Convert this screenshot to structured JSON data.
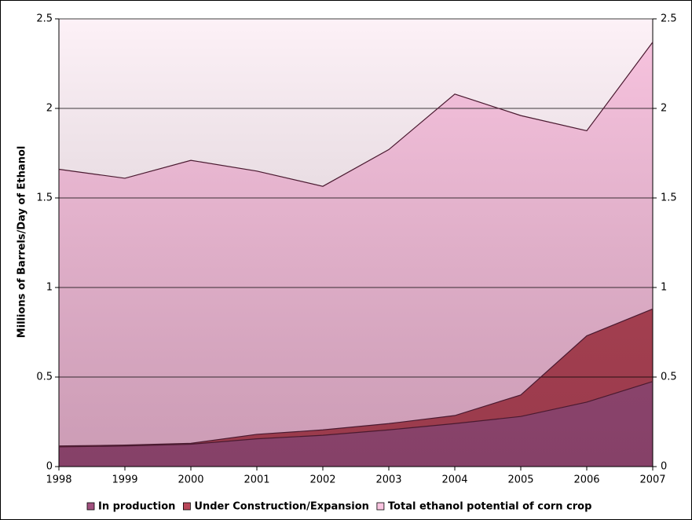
{
  "chart_data": {
    "type": "area",
    "y_axis_label": "Millions of Barrels/Day of Ethanol",
    "x": [
      1998,
      1999,
      2000,
      2001,
      2002,
      2003,
      2004,
      2005,
      2006,
      2007
    ],
    "xlim": [
      1998,
      2007
    ],
    "ylim": [
      0,
      2.5
    ],
    "yticks": [
      0,
      0.5,
      1,
      1.5,
      2,
      2.5
    ],
    "y2lim": [
      0,
      2.5
    ],
    "y2ticks": [
      0,
      0.5,
      1,
      1.5,
      2,
      2.5
    ],
    "grid": true,
    "legend": "bottom",
    "series": [
      {
        "name": "Total ethanol potential of corn crop",
        "color": "#f9c4e0",
        "values": [
          1.66,
          1.61,
          1.71,
          1.65,
          1.565,
          1.77,
          2.08,
          1.96,
          1.875,
          2.37
        ]
      },
      {
        "name": "Under Construction/Expansion",
        "color": "#b9485a",
        "values": [
          0.115,
          0.12,
          0.13,
          0.18,
          0.205,
          0.24,
          0.285,
          0.4,
          0.73,
          0.88
        ]
      },
      {
        "name": "In production",
        "color": "#a0507e",
        "values": [
          0.11,
          0.115,
          0.125,
          0.155,
          0.175,
          0.205,
          0.24,
          0.28,
          0.36,
          0.475
        ]
      }
    ]
  }
}
